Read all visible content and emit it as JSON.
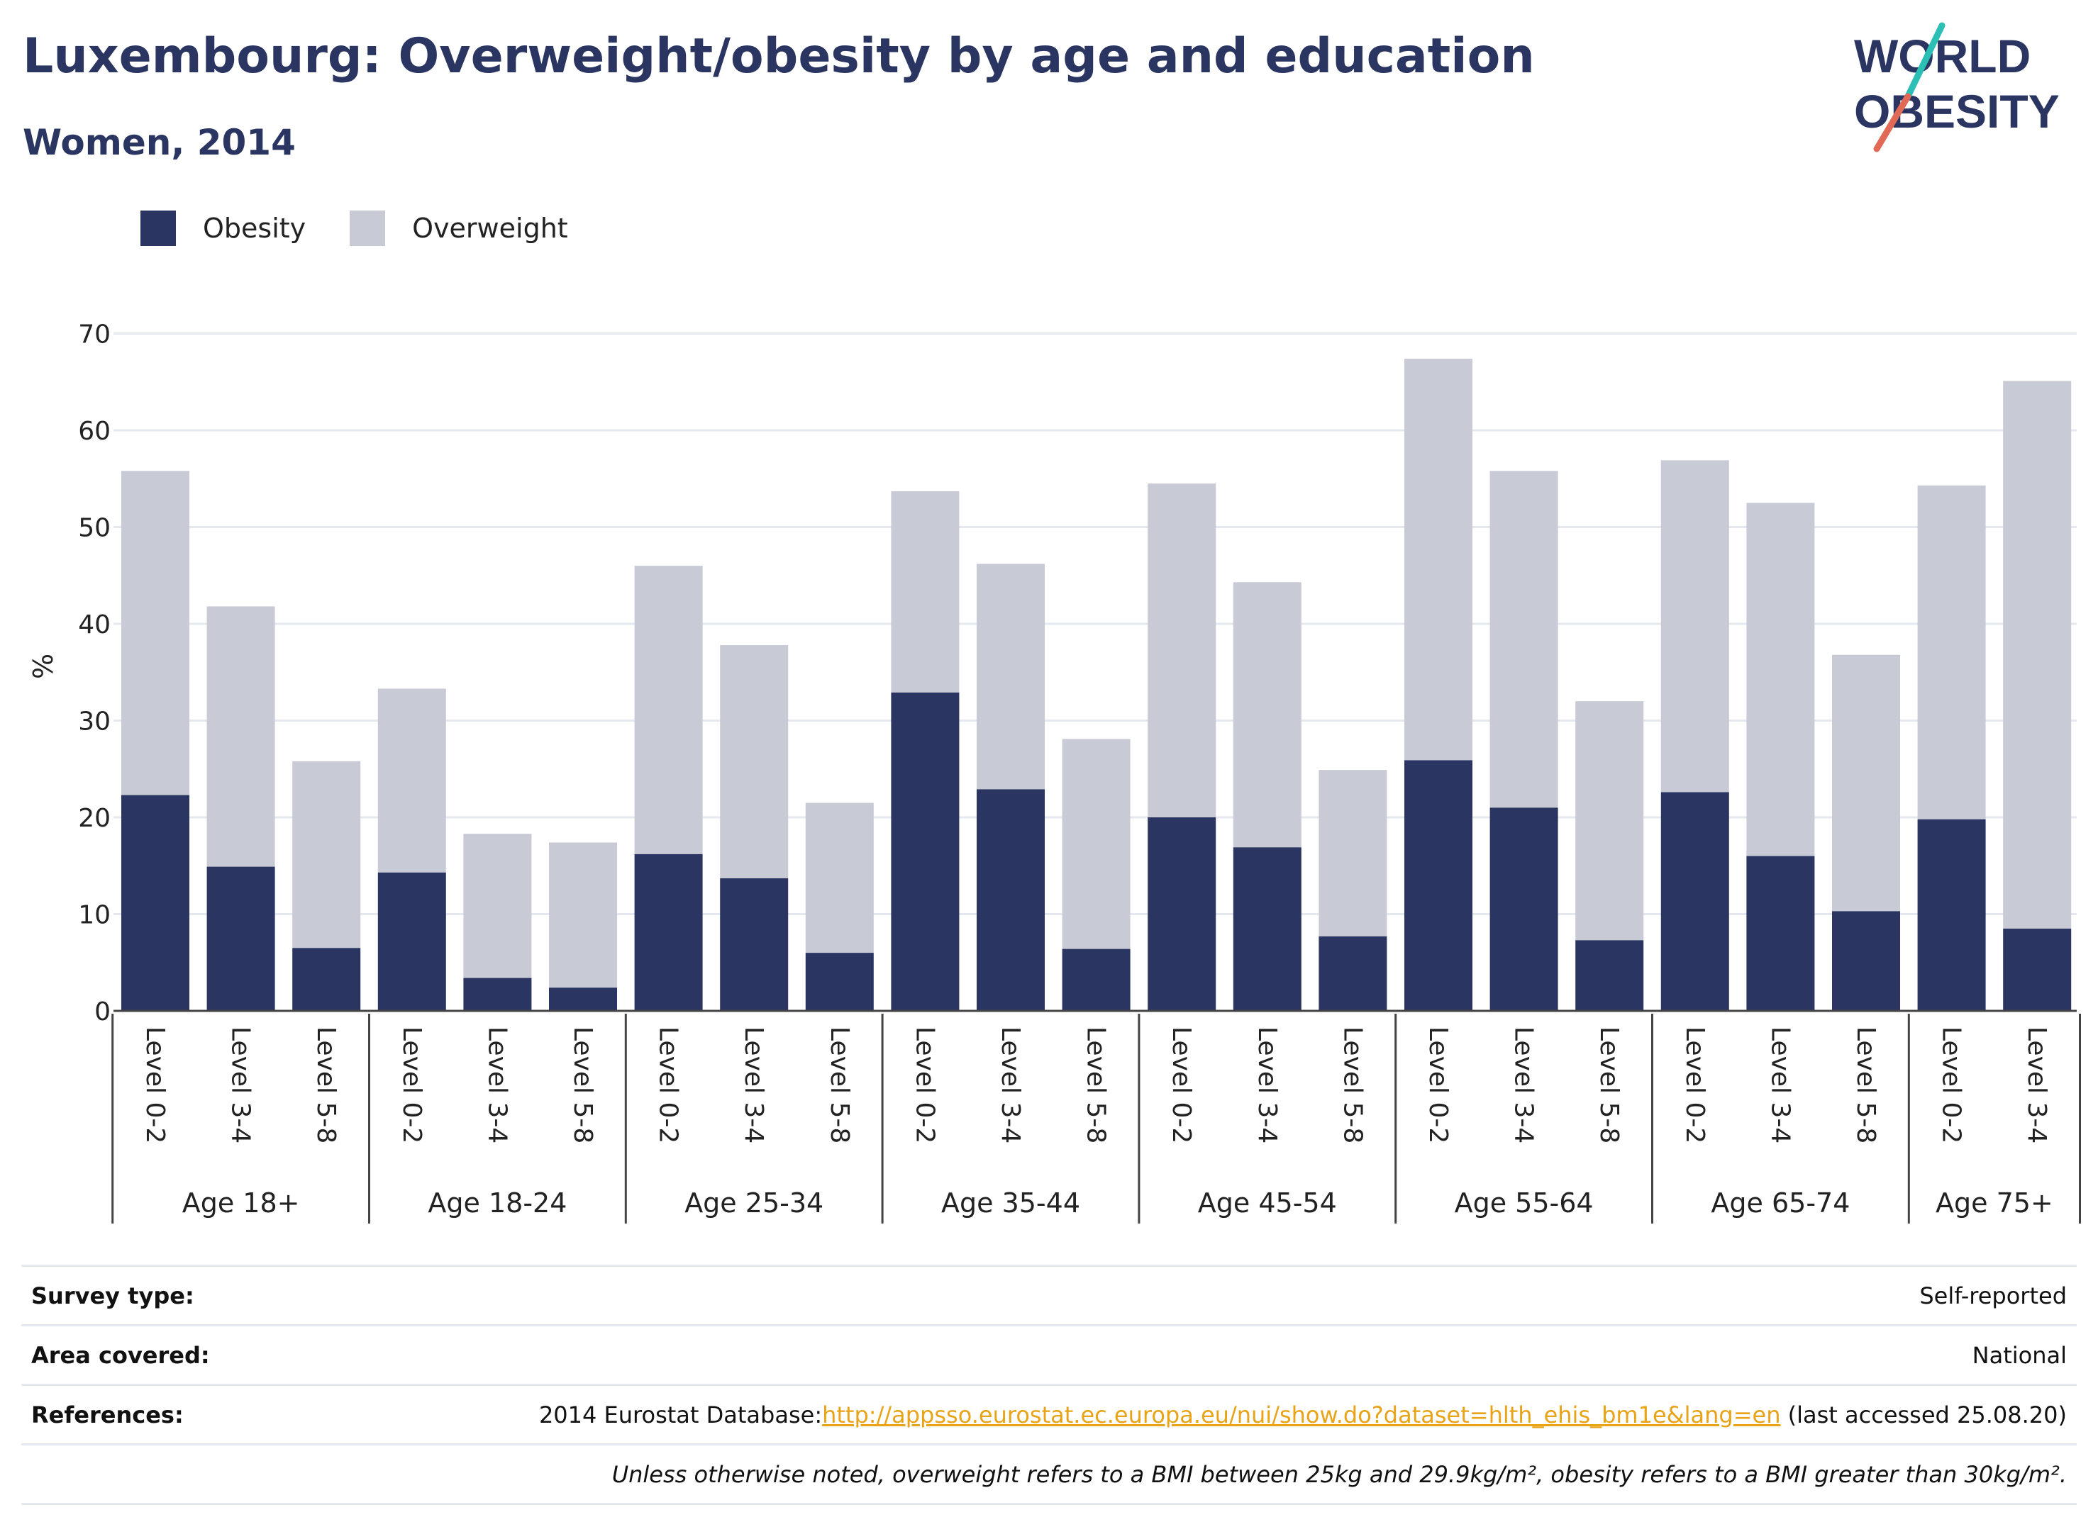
{
  "title": "Luxembourg: Overweight/obesity by age and education",
  "subtitle": "Women, 2014",
  "logo": {
    "line1": "WORLD",
    "line2": "OBESITY"
  },
  "colors": {
    "obesity": "#2a3561",
    "overweight": "#c8cad6",
    "accent_teal": "#2bbfb6",
    "accent_red": "#e06a55",
    "link": "#e8a317"
  },
  "legend": [
    {
      "label": "Obesity",
      "color": "#2a3561"
    },
    {
      "label": "Overweight",
      "color": "#c8cad6"
    }
  ],
  "chart_data": {
    "type": "bar",
    "stacked": true,
    "ylabel": "%",
    "ylim": [
      0,
      70
    ],
    "yticks": [
      0,
      10,
      20,
      30,
      40,
      50,
      60,
      70
    ],
    "grid": true,
    "legend_position": "top-left",
    "groups": [
      {
        "label": "Age 18+",
        "categories": [
          "Level 0-2",
          "Level 3-4",
          "Level 5-8"
        ]
      },
      {
        "label": "Age 18-24",
        "categories": [
          "Level 0-2",
          "Level 3-4",
          "Level 5-8"
        ]
      },
      {
        "label": "Age 25-34",
        "categories": [
          "Level 0-2",
          "Level 3-4",
          "Level 5-8"
        ]
      },
      {
        "label": "Age 35-44",
        "categories": [
          "Level 0-2",
          "Level 3-4",
          "Level 5-8"
        ]
      },
      {
        "label": "Age 45-54",
        "categories": [
          "Level 0-2",
          "Level 3-4",
          "Level 5-8"
        ]
      },
      {
        "label": "Age 55-64",
        "categories": [
          "Level 0-2",
          "Level 3-4",
          "Level 5-8"
        ]
      },
      {
        "label": "Age 65-74",
        "categories": [
          "Level 0-2",
          "Level 3-4",
          "Level 5-8"
        ]
      },
      {
        "label": "Age 75+",
        "categories": [
          "Level 0-2",
          "Level 3-4"
        ]
      }
    ],
    "series": [
      {
        "name": "Obesity",
        "values": [
          22.3,
          14.9,
          6.5,
          14.3,
          3.4,
          2.4,
          16.2,
          13.7,
          6.0,
          32.9,
          22.9,
          6.4,
          20.0,
          16.9,
          7.7,
          25.9,
          21.0,
          7.3,
          22.6,
          16.0,
          10.3,
          19.8,
          8.5
        ]
      },
      {
        "name": "Overweight",
        "values": [
          33.5,
          26.9,
          19.3,
          19.0,
          14.9,
          15.0,
          29.8,
          24.1,
          15.5,
          20.8,
          23.3,
          21.7,
          34.5,
          27.4,
          17.2,
          41.5,
          34.8,
          24.7,
          34.3,
          36.5,
          26.5,
          34.5,
          56.6
        ]
      }
    ]
  },
  "info": {
    "survey_type": {
      "key": "Survey type:",
      "value": "Self-reported"
    },
    "area_covered": {
      "key": "Area covered:",
      "value": "National"
    },
    "references": {
      "key": "References:",
      "prefix": "2014 Eurostat Database:",
      "link": "http://appsso.eurostat.ec.europa.eu/nui/show.do?dataset=hlth_ehis_bm1e&lang=en",
      "suffix": " (last accessed 25.08.20)"
    },
    "note": "Unless otherwise noted, overweight refers to a BMI between 25kg and 29.9kg/m², obesity refers to a BMI greater than 30kg/m²."
  }
}
